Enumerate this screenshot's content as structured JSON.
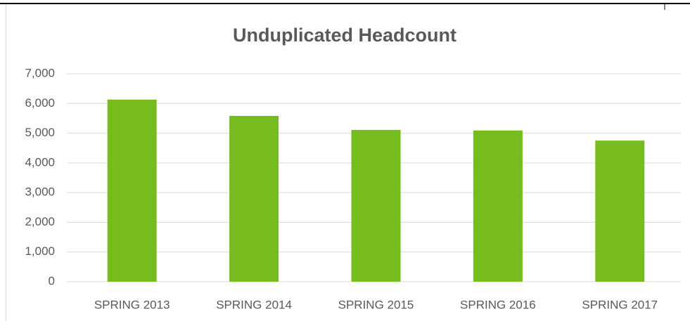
{
  "chart_data": {
    "type": "bar",
    "title": "Unduplicated Headcount",
    "categories": [
      "SPRING 2013",
      "SPRING 2014",
      "SPRING 2015",
      "SPRING 2016",
      "SPRING 2017"
    ],
    "values": [
      6130,
      5580,
      5110,
      5090,
      4750
    ],
    "color": "#77bc1f",
    "ylim": [
      0,
      7000
    ],
    "yticks": [
      0,
      {
        "value": 1000,
        "label": "1,000"
      },
      {
        "value": 2000,
        "label": "2,000"
      },
      {
        "value": 3000,
        "label": "3,000"
      },
      {
        "value": 4000,
        "label": "4,000"
      },
      {
        "value": 5000,
        "label": "5,000"
      },
      {
        "value": 6000,
        "label": "6,000"
      },
      {
        "value": 7000,
        "label": "7,000"
      }
    ],
    "grid": true
  }
}
